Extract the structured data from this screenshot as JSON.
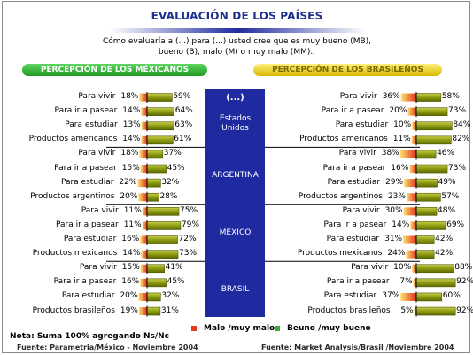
{
  "title": "EVALUACIÓN DE LOS PAÍSES",
  "question_line1": "Cómo evaluaría a (...) para (...) usted cree que es muy bueno (MB),",
  "question_line2": "bueno (B), malo (M) o muy malo (MM)..",
  "header_left": "PERCEPCIÓN DE LOS MÉXICANOS",
  "header_right": "PERCEPCIÓN DE LOS BRASILEÑOS",
  "center_header": "(...)",
  "colors": {
    "title": "#1e2f8f",
    "center_box": "#1f2aa0",
    "bad": "#e53b1a",
    "good": "#6b7a00",
    "left_pill": "#36b33a",
    "right_pill": "#e8cf22"
  },
  "legend": {
    "bad_label": "Malo /muy malo",
    "good_label": "Beuno /muy bueno"
  },
  "note": "Nota: Suma 100% agregando Ns/Nc",
  "source_left": "Fuente: Parametria/México - Noviembre 2004",
  "source_right": "Fuente: Market Analysis/Brasil /Noviembre 2004",
  "chart_data": {
    "type": "bar",
    "series": [
      {
        "name": "Malo /muy malo"
      },
      {
        "name": "Beuno /muy bueno"
      }
    ],
    "groups": [
      {
        "country": [
          "Estados",
          "Unidos"
        ],
        "left": [
          {
            "label": "Para vivir",
            "bad": 18,
            "good": 59
          },
          {
            "label": "Para ir a pasear",
            "bad": 14,
            "good": 64
          },
          {
            "label": "Para estudiar",
            "bad": 13,
            "good": 63
          },
          {
            "label": "Productos americanos",
            "bad": 14,
            "good": 61
          }
        ],
        "right": [
          {
            "label": "Para vivir",
            "bad": 36,
            "good": 58
          },
          {
            "label": "Para ir a pasear",
            "bad": 20,
            "good": 73
          },
          {
            "label": "Para estudiar",
            "bad": 10,
            "good": 84
          },
          {
            "label": "Productos americanos",
            "bad": 11,
            "good": 82
          }
        ]
      },
      {
        "country": [
          "ARGENTINA"
        ],
        "left": [
          {
            "label": "Para vivir",
            "bad": 18,
            "good": 37
          },
          {
            "label": "Para ir a pasear",
            "bad": 15,
            "good": 45
          },
          {
            "label": "Para estudiar",
            "bad": 22,
            "good": 32
          },
          {
            "label": "Productos argentinos",
            "bad": 20,
            "good": 28
          }
        ],
        "right": [
          {
            "label": "Para vivir",
            "bad": 38,
            "good": 46
          },
          {
            "label": "Para ir a pasear",
            "bad": 16,
            "good": 73
          },
          {
            "label": "Para estudiar",
            "bad": 29,
            "good": 49
          },
          {
            "label": "Productos argentinos",
            "bad": 23,
            "good": 57
          }
        ]
      },
      {
        "country": [
          "MÉXICO"
        ],
        "left": [
          {
            "label": "Para vivir",
            "bad": 11,
            "good": 75
          },
          {
            "label": "Para ir a pasear",
            "bad": 11,
            "good": 79
          },
          {
            "label": "Para estudiar",
            "bad": 16,
            "good": 72
          },
          {
            "label": "Productos mexicanos",
            "bad": 14,
            "good": 73
          }
        ],
        "right": [
          {
            "label": "Para vivir",
            "bad": 30,
            "good": 48
          },
          {
            "label": "Para ir a pasear",
            "bad": 14,
            "good": 69
          },
          {
            "label": "Para estudiar",
            "bad": 31,
            "good": 42
          },
          {
            "label": "Productos mexicanos",
            "bad": 24,
            "good": 42
          }
        ]
      },
      {
        "country": [
          "BRASIL"
        ],
        "left": [
          {
            "label": "Para vivir",
            "bad": 15,
            "good": 41
          },
          {
            "label": "Para ir a pasear",
            "bad": 16,
            "good": 45
          },
          {
            "label": "Para estudiar",
            "bad": 20,
            "good": 32
          },
          {
            "label": "Productos brasileños",
            "bad": 19,
            "good": 31
          }
        ],
        "right": [
          {
            "label": "Para vivir",
            "bad": 10,
            "good": 88
          },
          {
            "label": "Para ir a pasear",
            "bad": 7,
            "good": 92
          },
          {
            "label": "Para estudiar",
            "bad": 37,
            "good": 60
          },
          {
            "label": "Productos brasileños",
            "bad": 5,
            "good": 92
          }
        ]
      }
    ]
  }
}
